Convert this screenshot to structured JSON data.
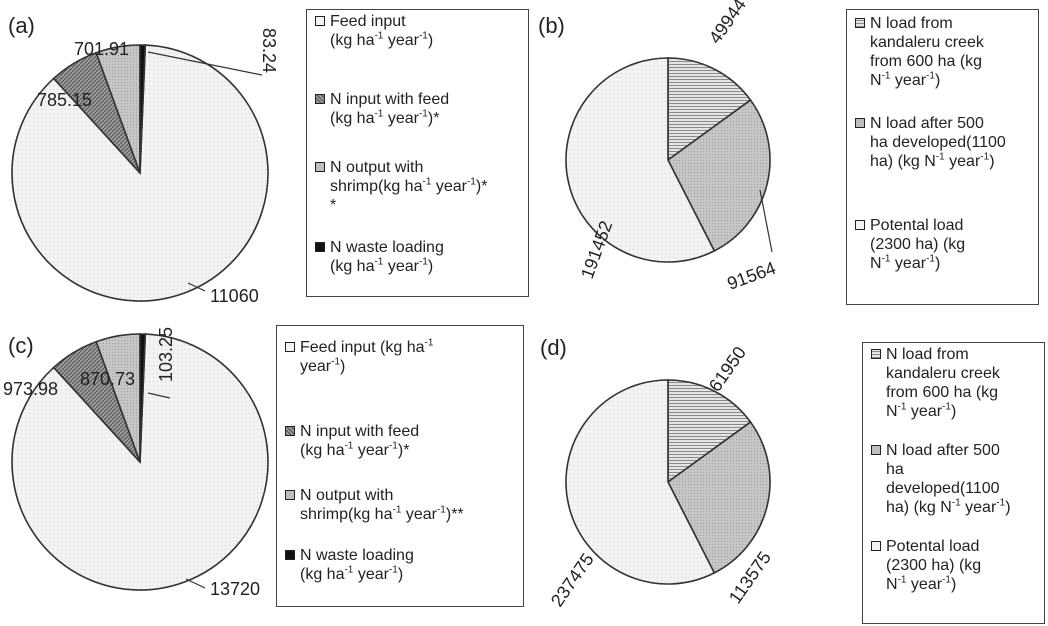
{
  "colors": {
    "light": "#efefef",
    "hatch_dark": "#8a8a8a",
    "medium": "#bdbdbd",
    "black": "#111111",
    "outline": "#333333"
  },
  "chart_data": [
    {
      "type": "pie",
      "panel": "(a)",
      "labels": [
        "Feed input",
        "N input with feed",
        "N output with shrimp",
        "N waste loading"
      ],
      "values": [
        11060,
        785.15,
        701.91,
        83.24
      ],
      "value_labels": [
        "11060",
        "785.15",
        "701.91",
        "83.24"
      ],
      "legend": [
        [
          "Feed input",
          "(kg ha",
          "-1",
          " year",
          "-1",
          ")"
        ],
        [
          "N input with feed",
          "(kg ha",
          "-1",
          " year",
          "-1",
          ")*"
        ],
        [
          "N output with",
          "shrimp(kg ha",
          "-1",
          " year",
          "-1",
          ")*",
          "*"
        ],
        [
          "N waste loading",
          "(kg ha",
          "-1",
          " year",
          "-1",
          ")"
        ]
      ]
    },
    {
      "type": "pie",
      "panel": "(b)",
      "labels": [
        "N load from kandaleru creek from 600 ha",
        "N load after 500 ha developed (1100 ha)",
        "Potental load (2300 ha)"
      ],
      "values": [
        49944,
        91564,
        191452
      ],
      "value_labels": [
        "49944",
        "91564",
        "191452"
      ],
      "legend": [
        [
          "N load from",
          "kandaleru creek",
          "from 600 ha (kg",
          "N",
          "-1",
          " year",
          "-1",
          ")"
        ],
        [
          "N load after 500",
          "ha developed(1100",
          "ha) (kg N",
          "-1",
          " year",
          "-1",
          ")"
        ],
        [
          "Potental load",
          "(2300 ha) (kg",
          "N",
          "-1",
          " year",
          "-1",
          ")"
        ]
      ]
    },
    {
      "type": "pie",
      "panel": "(c)",
      "labels": [
        "Feed input",
        "N input with feed",
        "N output with shrimp",
        "N waste loading"
      ],
      "values": [
        13720,
        973.98,
        870.73,
        103.25
      ],
      "value_labels": [
        "13720",
        "973.98",
        "870.73",
        "103.25"
      ],
      "legend": [
        [
          "Feed input (kg ha",
          "-1",
          "year",
          "-1",
          ")"
        ],
        [
          "N input with feed",
          "(kg ha",
          "-1",
          " year",
          "-1",
          ")*"
        ],
        [
          "N output with",
          "shrimp(kg ha",
          "-1",
          " year",
          "-1",
          ")**"
        ],
        [
          "N waste loading",
          "(kg ha",
          "-1",
          " year",
          "-1",
          ")"
        ]
      ]
    },
    {
      "type": "pie",
      "panel": "(d)",
      "labels": [
        "N load from kandaleru creek from 600 ha",
        "N load after 500 ha developed (1100 ha)",
        "Potental load (2300 ha)"
      ],
      "values": [
        61950,
        113575,
        237475
      ],
      "value_labels": [
        "61950",
        "113575",
        "237475"
      ],
      "legend": [
        [
          "N load from",
          "kandaleru creek",
          "from 600 ha (kg",
          "N",
          "-1",
          " year",
          "-1",
          ")"
        ],
        [
          "N load after 500",
          "ha",
          "developed(1100",
          "ha) (kg N",
          "-1",
          " year",
          "-1",
          ")"
        ],
        [
          "Potental load",
          "(2300 ha) (kg",
          "N",
          "-1",
          " year",
          "-1",
          ")"
        ]
      ]
    }
  ]
}
